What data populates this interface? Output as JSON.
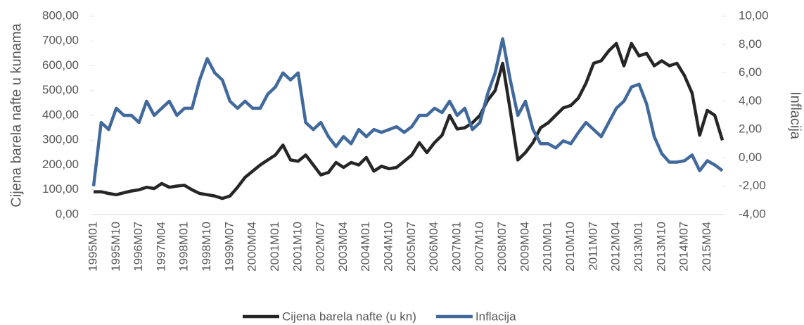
{
  "chart_data": {
    "type": "line",
    "y_label": "Cijena barela nafte u kunama",
    "y2_label": "Inflacija",
    "categories": [
      "1995M01",
      null,
      null,
      "1995M10",
      null,
      null,
      "1996M07",
      null,
      null,
      "1997M04",
      null,
      null,
      "1998M01",
      null,
      null,
      "1998M10",
      null,
      null,
      "1999M07",
      null,
      null,
      "2000M04",
      null,
      null,
      "2001M01",
      null,
      null,
      "2001M10",
      null,
      null,
      "2002M07",
      null,
      null,
      "2003M04",
      null,
      null,
      "2004M01",
      null,
      null,
      "2004M10",
      null,
      null,
      "2005M07",
      null,
      null,
      "2006M04",
      null,
      null,
      "2007M01",
      null,
      null,
      "2007M10",
      null,
      null,
      "2008M07",
      null,
      null,
      "2009M04",
      null,
      null,
      "2010M01",
      null,
      null,
      "2010M10",
      null,
      null,
      "2011M07",
      null,
      null,
      "2012M04",
      null,
      null,
      "2013M01",
      null,
      null,
      "2013M10",
      null,
      null,
      "2014M07",
      null,
      null,
      "2015M04",
      null,
      null
    ],
    "series": [
      {
        "name": "Cijena barela nafte (u kn)",
        "color": "#262626",
        "axis": "y",
        "values": [
          92,
          92,
          85,
          80,
          88,
          95,
          100,
          110,
          105,
          125,
          110,
          115,
          118,
          100,
          85,
          80,
          75,
          65,
          75,
          110,
          150,
          175,
          200,
          220,
          240,
          280,
          220,
          215,
          240,
          200,
          160,
          170,
          210,
          190,
          210,
          200,
          230,
          175,
          195,
          185,
          190,
          215,
          240,
          290,
          250,
          290,
          320,
          400,
          345,
          350,
          370,
          400,
          460,
          500,
          610,
          420,
          220,
          250,
          290,
          350,
          370,
          400,
          430,
          440,
          470,
          530,
          610,
          620,
          660,
          690,
          600,
          690,
          640,
          650,
          600,
          620,
          600,
          610,
          560,
          490,
          320,
          420,
          400,
          300
        ]
      },
      {
        "name": "Inflacija",
        "color": "#41699c",
        "axis": "y2",
        "values": [
          -2.0,
          2.5,
          2.0,
          3.5,
          3.0,
          3.0,
          2.5,
          4.0,
          3.0,
          3.5,
          4.0,
          3.0,
          3.5,
          3.5,
          5.5,
          7.0,
          6.0,
          5.5,
          4.0,
          3.5,
          4.0,
          3.5,
          3.5,
          4.5,
          5.0,
          6.0,
          5.5,
          6.0,
          2.5,
          2.0,
          2.5,
          1.5,
          0.8,
          1.5,
          1.0,
          2.0,
          1.5,
          2.0,
          1.8,
          2.0,
          2.2,
          1.8,
          2.2,
          3.0,
          3.0,
          3.5,
          3.2,
          4.0,
          3.0,
          3.5,
          2.0,
          2.5,
          4.5,
          6.0,
          8.4,
          5.5,
          3.0,
          4.0,
          2.0,
          1.0,
          1.0,
          0.7,
          1.2,
          1.0,
          1.8,
          2.5,
          2.0,
          1.5,
          2.5,
          3.5,
          4.0,
          5.0,
          5.2,
          3.8,
          1.5,
          0.3,
          -0.3,
          -0.3,
          -0.2,
          0.2,
          -0.9,
          -0.2,
          -0.5,
          -0.9
        ]
      }
    ],
    "ylim": [
      0,
      800
    ],
    "yticks": [
      {
        "value": 0,
        "label": "0,00"
      },
      {
        "value": 100,
        "label": "100,00"
      },
      {
        "value": 200,
        "label": "200,00"
      },
      {
        "value": 300,
        "label": "300,00"
      },
      {
        "value": 400,
        "label": "400,00"
      },
      {
        "value": 500,
        "label": "500,00"
      },
      {
        "value": 600,
        "label": "600,00"
      },
      {
        "value": 700,
        "label": "700,00"
      },
      {
        "value": 800,
        "label": "800,00"
      }
    ],
    "y2lim": [
      -4,
      10
    ],
    "y2ticks": [
      {
        "value": -4,
        "label": "-4,00"
      },
      {
        "value": -2,
        "label": "-2,00"
      },
      {
        "value": 0,
        "label": "0,00"
      },
      {
        "value": 2,
        "label": "2,00"
      },
      {
        "value": 4,
        "label": "4,00"
      },
      {
        "value": 6,
        "label": "6,00"
      },
      {
        "value": 8,
        "label": "8,00"
      },
      {
        "value": 10,
        "label": "10,00"
      }
    ],
    "legend": "bottom"
  }
}
